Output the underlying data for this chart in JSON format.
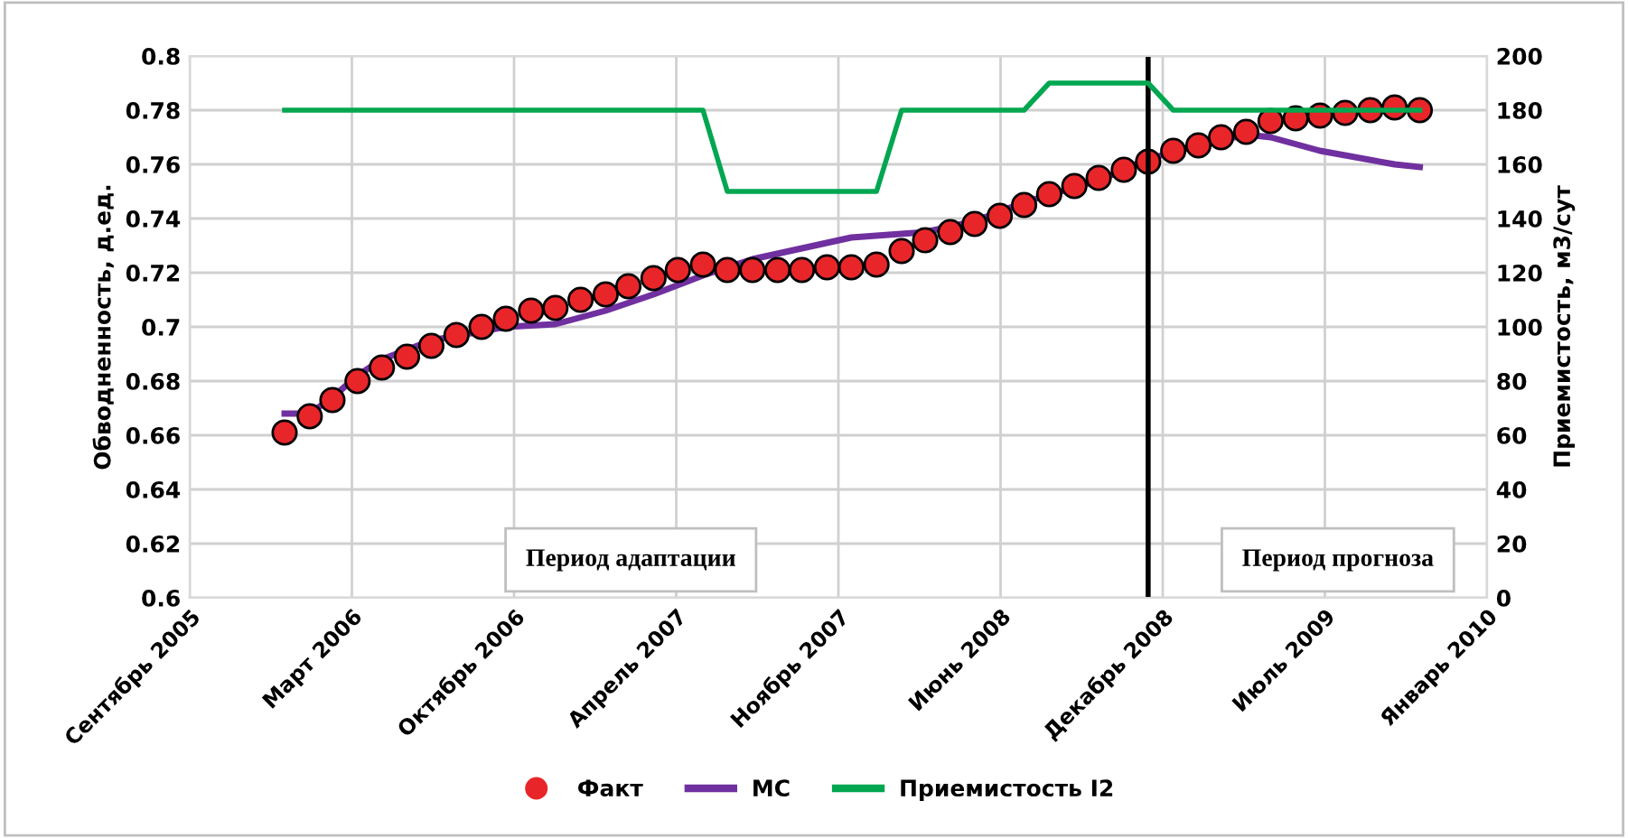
{
  "chart_data": {
    "type": "line",
    "ylabel": "Обводненность, д.ед.",
    "y2label": "Приемистость, м3/сут",
    "xlim": [
      "2005-09-06",
      "2010-01-23"
    ],
    "xticks": [
      {
        "value": "2005-09-06",
        "label": "Сентябрь 2005"
      },
      {
        "value": "2006-03-25",
        "label": "Март 2006"
      },
      {
        "value": "2006-10-11",
        "label": "Октябрь 2006"
      },
      {
        "value": "2007-04-29",
        "label": "Апрель 2007"
      },
      {
        "value": "2007-11-15",
        "label": "Ноябрь 2007"
      },
      {
        "value": "2008-06-02",
        "label": "Июнь 2008"
      },
      {
        "value": "2008-12-19",
        "label": "Декабрь 2008"
      },
      {
        "value": "2009-07-07",
        "label": "Июль 2009"
      },
      {
        "value": "2010-01-23",
        "label": "Январь 2010"
      }
    ],
    "ylim": [
      0.6,
      0.8
    ],
    "yticks": [
      0.6,
      0.62,
      0.64,
      0.66,
      0.68,
      0.7,
      0.72,
      0.74,
      0.76,
      0.78,
      0.8
    ],
    "y2lim": [
      0,
      200
    ],
    "y2ticks": [
      0,
      20,
      40,
      60,
      80,
      100,
      120,
      140,
      160,
      180,
      200
    ],
    "grid": true,
    "legend": "bottom",
    "series": [
      {
        "name": "Факт",
        "type": "scatter",
        "marker": "circle",
        "color": "#e8262a",
        "x": [
          "2006-01",
          "2006-02",
          "2006-03",
          "2006-04",
          "2006-05",
          "2006-06",
          "2006-07",
          "2006-08",
          "2006-09",
          "2006-10",
          "2006-11",
          "2006-12",
          "2007-01",
          "2007-02",
          "2007-03",
          "2007-04",
          "2007-05",
          "2007-06",
          "2007-07",
          "2007-08",
          "2007-09",
          "2007-10",
          "2007-11",
          "2007-12",
          "2008-01",
          "2008-02",
          "2008-03",
          "2008-04",
          "2008-05",
          "2008-06",
          "2008-07",
          "2008-08",
          "2008-09",
          "2008-10",
          "2008-11",
          "2008-12",
          "2009-01",
          "2009-02",
          "2009-03",
          "2009-04",
          "2009-05",
          "2009-06",
          "2009-07",
          "2009-08",
          "2009-09",
          "2009-10",
          "2009-11"
        ],
        "values": [
          0.661,
          0.667,
          0.673,
          0.68,
          0.685,
          0.689,
          0.693,
          0.697,
          0.7,
          0.703,
          0.706,
          0.707,
          0.71,
          0.712,
          0.715,
          0.718,
          0.721,
          0.723,
          0.721,
          0.721,
          0.721,
          0.721,
          0.722,
          0.722,
          0.723,
          0.728,
          0.732,
          0.735,
          0.738,
          0.741,
          0.745,
          0.749,
          0.752,
          0.755,
          0.758,
          0.761,
          0.765,
          0.767,
          0.77,
          0.772,
          0.776,
          0.777,
          0.778,
          0.779,
          0.78,
          0.781,
          0.78
        ]
      },
      {
        "name": "МС",
        "color": "#7030a0",
        "x": [
          "2006-01",
          "2006-02",
          "2006-03",
          "2006-04",
          "2006-05",
          "2006-07",
          "2006-10",
          "2006-12",
          "2007-02",
          "2007-04",
          "2007-06",
          "2007-08",
          "2007-10",
          "2007-12",
          "2008-03",
          "2008-05",
          "2008-07",
          "2008-10",
          "2008-12",
          "2009-02",
          "2009-04",
          "2009-05",
          "2009-07",
          "2009-10",
          "2009-11"
        ],
        "values": [
          0.668,
          0.668,
          0.674,
          0.682,
          0.688,
          0.695,
          0.7,
          0.701,
          0.706,
          0.712,
          0.719,
          0.725,
          0.729,
          0.733,
          0.735,
          0.739,
          0.746,
          0.754,
          0.762,
          0.767,
          0.771,
          0.77,
          0.765,
          0.76,
          0.759
        ]
      },
      {
        "name": "Приемистость I2",
        "axis": "y2",
        "color": "#00a650",
        "x": [
          "2006-01",
          "2007-06",
          "2007-07",
          "2008-01",
          "2008-02",
          "2008-07",
          "2008-08",
          "2008-12",
          "2009-01",
          "2009-11"
        ],
        "values": [
          180,
          180,
          150,
          150,
          180,
          180,
          190,
          190,
          180,
          180
        ]
      }
    ],
    "ref_lines": [
      {
        "axis": "x",
        "value": "2008-12-01",
        "color": "#000000"
      }
    ],
    "annotations": [
      "Период адаптации",
      "Период прогноза"
    ]
  }
}
